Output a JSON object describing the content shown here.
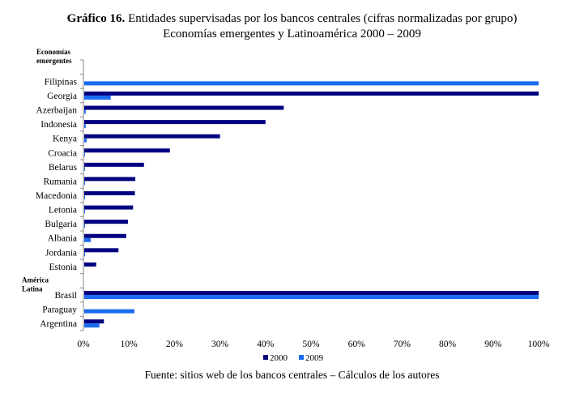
{
  "title": {
    "prefix": "Gráfico 16.",
    "line1": "Entidades supervisadas por los bancos centrales (cifras normalizadas por grupo)",
    "line2": "Economías emergentes y Latinoamérica 2000 – 2009"
  },
  "source": "Fuente: sitios web de los bancos centrales – Cálculos de los autores",
  "chart_data": {
    "type": "bar",
    "orientation": "horizontal",
    "groups": [
      {
        "label": "Economías emergentes",
        "categories": [
          "Filipinas",
          "Georgia",
          "Azerbaijan",
          "Indonesia",
          "Kenya",
          "Croacia",
          "Belarus",
          "Rumania",
          "Macedonia",
          "Letonia",
          "Bulgaria",
          "Albania",
          "Jordania",
          "Estonia"
        ]
      },
      {
        "label": "América Latina",
        "categories": [
          "Brasil",
          "Paraguay",
          "Argentina"
        ]
      }
    ],
    "series": [
      {
        "name": "2000",
        "color": "#000080",
        "values": [
          0,
          100,
          44,
          40,
          30,
          19,
          13.3,
          11.4,
          11.3,
          10.9,
          9.8,
          9.4,
          7.7,
          2.8,
          100,
          0,
          4.5
        ]
      },
      {
        "name": "2009",
        "color": "#1a6cf0",
        "values": [
          100,
          6,
          0.5,
          0.5,
          0.7,
          0.2,
          0.2,
          0.2,
          0.2,
          0.2,
          0.2,
          1.6,
          0.2,
          0,
          100,
          11.2,
          3.5
        ]
      }
    ],
    "xlim": [
      0,
      100
    ],
    "xticks": [
      "0%",
      "10%",
      "20%",
      "30%",
      "40%",
      "50%",
      "60%",
      "70%",
      "80%",
      "90%",
      "100%"
    ],
    "grid": false,
    "legend": "bottom"
  }
}
